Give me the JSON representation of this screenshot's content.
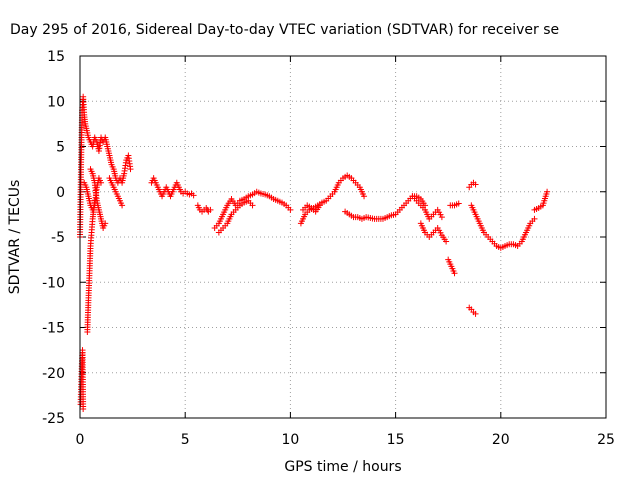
{
  "chart_data": {
    "type": "scatter",
    "title": "Day 295 of 2016, Sidereal Day-to-day VTEC variation (SDTVAR) for receiver se",
    "xlabel": "GPS time / hours",
    "ylabel": "SDTVAR / TECUs",
    "xlim": [
      0,
      25
    ],
    "ylim": [
      -25,
      15
    ],
    "xticks": [
      0,
      5,
      10,
      15,
      20,
      25
    ],
    "yticks": [
      -25,
      -20,
      -15,
      -10,
      -5,
      0,
      5,
      10,
      15
    ],
    "xtick_labels": [
      "0",
      "5",
      "10",
      "15",
      "20",
      "25"
    ],
    "ytick_labels": [
      "-25",
      "-20",
      "-15",
      "-10",
      "-5",
      "0",
      "5",
      "10",
      "15"
    ],
    "grid": true,
    "marker": "+",
    "marker_color": "#ff0000",
    "series": [
      {
        "name": "SDTVAR",
        "segments": [
          {
            "x": [
              0.0,
              0.05,
              0.1,
              0.15,
              0.2,
              0.25,
              0.3,
              0.35,
              0.4,
              0.5,
              0.6,
              0.7,
              0.8,
              0.9,
              1.0,
              1.1,
              1.2,
              1.3,
              1.4,
              1.5,
              1.6,
              1.7,
              1.8,
              1.9,
              2.0,
              2.1,
              2.2,
              2.3,
              2.4
            ],
            "y": [
              -5.0,
              3.0,
              9.0,
              10.5,
              8.5,
              7.5,
              7.0,
              6.5,
              6.0,
              5.5,
              5.0,
              6.0,
              5.5,
              4.5,
              6.0,
              5.5,
              6.0,
              5.0,
              4.0,
              3.0,
              2.5,
              1.5,
              1.0,
              1.5,
              1.0,
              2.0,
              3.5,
              4.0,
              2.5
            ]
          },
          {
            "x": [
              0.03,
              0.06,
              0.09,
              0.12,
              0.15
            ],
            "y": [
              -23.5,
              -21.0,
              -19.0,
              -17.5,
              -24.0
            ]
          },
          {
            "x": [
              0.35,
              0.4,
              0.45,
              0.5,
              0.55,
              0.6,
              0.65,
              0.7
            ],
            "y": [
              -15.5,
              -12.0,
              -9.0,
              -6.0,
              -4.5,
              -3.0,
              -2.0,
              -1.0
            ]
          },
          {
            "x": [
              0.5,
              0.6,
              0.7,
              0.8,
              0.9,
              1.0,
              1.1,
              1.2
            ],
            "y": [
              2.5,
              2.0,
              1.0,
              -1.0,
              -2.0,
              -3.0,
              -4.0,
              -3.5
            ]
          },
          {
            "x": [
              0.2,
              0.3,
              0.4,
              0.5,
              0.6,
              0.7,
              0.8,
              0.9,
              1.0
            ],
            "y": [
              1.0,
              0.5,
              -0.5,
              -1.5,
              -2.0,
              -1.5,
              0.5,
              1.5,
              1.0
            ]
          },
          {
            "x": [
              1.4,
              1.5,
              1.6,
              1.7,
              1.8,
              1.9,
              2.0
            ],
            "y": [
              1.5,
              1.0,
              0.5,
              0.0,
              -0.5,
              -1.0,
              -1.5
            ]
          },
          {
            "x": [
              3.4,
              3.5,
              3.6,
              3.7,
              3.8,
              3.9,
              4.0,
              4.1,
              4.2,
              4.3,
              4.4,
              4.5,
              4.6,
              4.7,
              4.8,
              4.9,
              5.0,
              5.1,
              5.2,
              5.3,
              5.4
            ],
            "y": [
              1.0,
              1.5,
              1.0,
              0.5,
              0.0,
              -0.5,
              0.0,
              0.5,
              0.0,
              -0.5,
              0.0,
              0.5,
              1.0,
              0.5,
              0.0,
              -0.2,
              0.0,
              -0.2,
              -0.3,
              -0.2,
              -0.4
            ]
          },
          {
            "x": [
              5.6,
              5.7,
              5.8,
              5.9,
              6.0,
              6.1,
              6.2
            ],
            "y": [
              -1.5,
              -2.0,
              -2.2,
              -2.0,
              -1.8,
              -2.2,
              -2.0
            ]
          },
          {
            "x": [
              6.4,
              6.6,
              6.8,
              7.0,
              7.2,
              7.4,
              7.6,
              7.8,
              8.0,
              8.2,
              8.4,
              8.6,
              8.8,
              9.0,
              9.2,
              9.4,
              9.6,
              9.8,
              10.0
            ],
            "y": [
              -4.0,
              -3.5,
              -2.5,
              -1.5,
              -0.8,
              -1.5,
              -1.0,
              -0.8,
              -0.5,
              -0.3,
              0.0,
              -0.2,
              -0.3,
              -0.5,
              -0.8,
              -1.0,
              -1.2,
              -1.5,
              -2.0
            ]
          },
          {
            "x": [
              6.6,
              6.8,
              7.0,
              7.2,
              7.4,
              7.6,
              7.8,
              8.0,
              8.2
            ],
            "y": [
              -4.5,
              -4.0,
              -3.5,
              -2.5,
              -2.0,
              -1.5,
              -1.2,
              -1.0,
              -1.5
            ]
          },
          {
            "x": [
              10.5,
              10.7,
              10.9,
              11.1,
              11.3,
              11.5,
              11.7,
              11.9,
              12.1,
              12.3,
              12.5,
              12.7,
              12.9,
              13.1,
              13.3,
              13.5
            ],
            "y": [
              -3.5,
              -2.5,
              -2.0,
              -1.8,
              -1.5,
              -1.2,
              -1.0,
              -0.5,
              0.0,
              1.0,
              1.5,
              1.8,
              1.5,
              1.0,
              0.5,
              -0.5
            ]
          },
          {
            "x": [
              10.6,
              10.8,
              11.0,
              11.2,
              11.4
            ],
            "y": [
              -2.0,
              -1.5,
              -1.8,
              -2.2,
              -1.5
            ]
          },
          {
            "x": [
              12.6,
              12.8,
              13.0,
              13.2,
              13.4,
              13.6,
              13.8,
              14.0,
              14.2,
              14.4,
              14.6,
              14.8,
              15.0,
              15.2,
              15.4,
              15.6,
              15.8,
              16.0,
              16.2,
              16.4
            ],
            "y": [
              -2.2,
              -2.5,
              -2.8,
              -2.8,
              -3.0,
              -2.8,
              -2.9,
              -3.0,
              -3.0,
              -3.0,
              -2.8,
              -2.6,
              -2.5,
              -2.0,
              -1.5,
              -1.0,
              -0.5,
              -0.5,
              -0.8,
              -1.5
            ]
          },
          {
            "x": [
              16.2,
              16.4,
              16.6,
              16.8,
              17.0,
              17.2,
              17.4
            ],
            "y": [
              -3.5,
              -4.5,
              -5.0,
              -4.5,
              -4.0,
              -4.8,
              -5.5
            ]
          },
          {
            "x": [
              15.8,
              16.0,
              16.2,
              16.4,
              16.6,
              16.8,
              17.0,
              17.2
            ],
            "y": [
              -0.5,
              -1.0,
              -1.5,
              -2.0,
              -3.0,
              -2.5,
              -2.0,
              -2.8
            ]
          },
          {
            "x": [
              17.5,
              17.6,
              17.7,
              17.8
            ],
            "y": [
              -7.5,
              -8.0,
              -8.5,
              -9.0
            ]
          },
          {
            "x": [
              17.6,
              17.8,
              18.0
            ],
            "y": [
              -1.5,
              -1.5,
              -1.3
            ]
          },
          {
            "x": [
              18.5,
              18.6,
              18.7,
              18.8
            ],
            "y": [
              -12.8,
              -13.0,
              -13.3,
              -13.5
            ]
          },
          {
            "x": [
              18.5,
              18.6,
              18.7,
              18.8
            ],
            "y": [
              0.5,
              0.8,
              1.0,
              0.8
            ]
          },
          {
            "x": [
              18.6,
              18.8,
              19.0,
              19.2,
              19.4,
              19.6,
              19.8,
              20.0,
              20.2,
              20.4,
              20.6,
              20.8,
              21.0,
              21.2,
              21.4,
              21.6
            ],
            "y": [
              -1.5,
              -2.5,
              -3.5,
              -4.5,
              -5.0,
              -5.5,
              -6.0,
              -6.2,
              -6.0,
              -5.8,
              -5.8,
              -6.0,
              -5.5,
              -4.5,
              -3.5,
              -3.0
            ]
          },
          {
            "x": [
              21.6,
              21.8,
              22.0,
              22.2
            ],
            "y": [
              -2.0,
              -1.8,
              -1.5,
              0.0
            ]
          }
        ]
      }
    ]
  }
}
